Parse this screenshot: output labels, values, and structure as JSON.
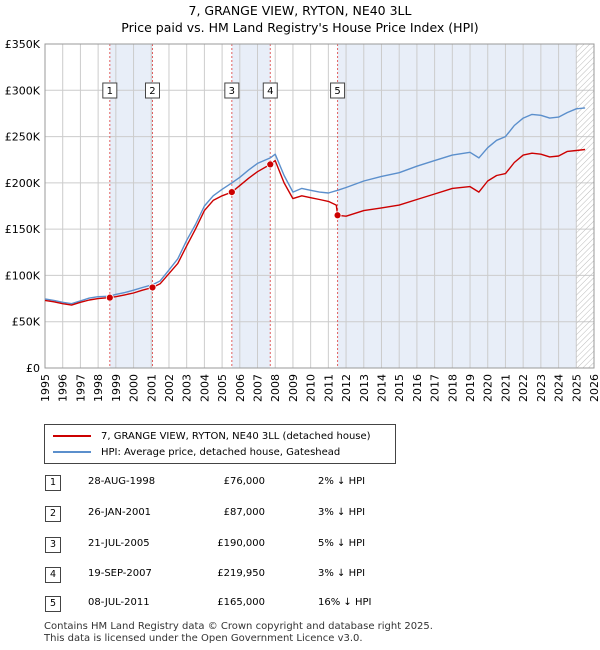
{
  "title": "7, GRANGE VIEW, RYTON, NE40 3LL",
  "subtitle": "Price paid vs. HM Land Registry's House Price Index (HPI)",
  "colors": {
    "property": "#cc0000",
    "hpi": "#5b8fcc",
    "band": "#e8eef8",
    "vline": "#e06060"
  },
  "chart_data": {
    "type": "line",
    "xlim": [
      1995,
      2026
    ],
    "ylim": [
      0,
      350000
    ],
    "y_ticks": [
      {
        "value": 0,
        "label": "£0"
      },
      {
        "value": 50000,
        "label": "£50K"
      },
      {
        "value": 100000,
        "label": "£100K"
      },
      {
        "value": 150000,
        "label": "£150K"
      },
      {
        "value": 200000,
        "label": "£200K"
      },
      {
        "value": 250000,
        "label": "£250K"
      },
      {
        "value": 300000,
        "label": "£300K"
      },
      {
        "value": 350000,
        "label": "£350K"
      }
    ],
    "x_ticks": [
      "1995",
      "1996",
      "1997",
      "1998",
      "1999",
      "2000",
      "2001",
      "2002",
      "2003",
      "2004",
      "2005",
      "2006",
      "2007",
      "2008",
      "2009",
      "2010",
      "2011",
      "2012",
      "2013",
      "2014",
      "2015",
      "2016",
      "2017",
      "2018",
      "2019",
      "2020",
      "2021",
      "2022",
      "2023",
      "2024",
      "2025",
      "2026"
    ],
    "shaded_ranges": [
      [
        1998.66,
        2001.07
      ],
      [
        2005.55,
        2007.72
      ],
      [
        2011.52,
        2025.0
      ]
    ],
    "projection_start": 2025.0,
    "series": [
      {
        "name": "7, GRANGE VIEW, RYTON, NE40 3LL (detached house)",
        "x": [
          1995.0,
          1995.5,
          1996.0,
          1996.5,
          1997.0,
          1997.5,
          1998.0,
          1998.66,
          1999.0,
          1999.5,
          2000.0,
          2000.5,
          2001.07,
          2001.5,
          2002.0,
          2002.5,
          2003.0,
          2003.5,
          2004.0,
          2004.5,
          2005.0,
          2005.55,
          2006.0,
          2006.5,
          2007.0,
          2007.72,
          2008.0,
          2008.5,
          2009.0,
          2009.5,
          2010.0,
          2010.5,
          2011.0,
          2011.45,
          2011.52,
          2012.0,
          2013.0,
          2014.0,
          2015.0,
          2016.0,
          2017.0,
          2018.0,
          2019.0,
          2019.5,
          2020.0,
          2020.5,
          2021.0,
          2021.5,
          2022.0,
          2022.5,
          2023.0,
          2023.5,
          2024.0,
          2024.5,
          2025.0,
          2025.5
        ],
        "values": [
          73000,
          71500,
          69500,
          68000,
          71000,
          73500,
          75000,
          76000,
          77000,
          79000,
          81000,
          84000,
          87000,
          91000,
          102000,
          113000,
          132000,
          150000,
          170000,
          181000,
          186000,
          190000,
          197000,
          205000,
          212000,
          219950,
          224000,
          200000,
          183000,
          186000,
          184000,
          182000,
          180000,
          176000,
          165000,
          164000,
          170000,
          173000,
          176000,
          182000,
          188000,
          194000,
          196000,
          190000,
          202000,
          208000,
          210000,
          222000,
          230000,
          232000,
          231000,
          228000,
          229000,
          234000,
          235000,
          236000
        ]
      },
      {
        "name": "HPI: Average price, detached house, Gateshead",
        "x": [
          1995.0,
          1995.5,
          1996.0,
          1996.5,
          1997.0,
          1997.5,
          1998.0,
          1998.66,
          1999.0,
          1999.5,
          2000.0,
          2000.5,
          2001.07,
          2001.5,
          2002.0,
          2002.5,
          2003.0,
          2003.5,
          2004.0,
          2004.5,
          2005.0,
          2005.55,
          2006.0,
          2006.5,
          2007.0,
          2007.72,
          2008.0,
          2008.5,
          2009.0,
          2009.5,
          2010.0,
          2010.5,
          2011.0,
          2011.52,
          2012.0,
          2013.0,
          2014.0,
          2015.0,
          2016.0,
          2017.0,
          2018.0,
          2019.0,
          2019.5,
          2020.0,
          2020.5,
          2021.0,
          2021.5,
          2022.0,
          2022.5,
          2023.0,
          2023.5,
          2024.0,
          2024.5,
          2025.0,
          2025.5
        ],
        "values": [
          74500,
          73000,
          71000,
          69500,
          72500,
          75500,
          77000,
          77600,
          79500,
          81500,
          84000,
          87000,
          90000,
          94000,
          106000,
          118000,
          138000,
          155000,
          175000,
          186000,
          193000,
          200000,
          206000,
          214000,
          221000,
          227000,
          231000,
          208000,
          190000,
          194000,
          192000,
          190000,
          189000,
          192000,
          195000,
          202000,
          207000,
          211000,
          218000,
          224000,
          230000,
          233000,
          227000,
          238000,
          246000,
          250000,
          262000,
          270000,
          274000,
          273000,
          270000,
          271000,
          276000,
          280000,
          281000
        ]
      }
    ],
    "sales": [
      {
        "label": "1",
        "date": "28-AUG-1998",
        "year": 1998.66,
        "price": 76000
      },
      {
        "label": "2",
        "date": "26-JAN-2001",
        "year": 2001.07,
        "price": 87000
      },
      {
        "label": "3",
        "date": "21-JUL-2005",
        "year": 2005.55,
        "price": 190000
      },
      {
        "label": "4",
        "date": "19-SEP-2007",
        "year": 2007.72,
        "price": 219950
      },
      {
        "label": "5",
        "date": "08-JUL-2011",
        "year": 2011.52,
        "price": 165000
      }
    ]
  },
  "legend": {
    "property": "7, GRANGE VIEW, RYTON, NE40 3LL (detached house)",
    "hpi": "HPI: Average price, detached house, Gateshead"
  },
  "transactions": [
    {
      "num": "1",
      "date": "28-AUG-1998",
      "price": "£76,000",
      "hpi": "2% ↓ HPI"
    },
    {
      "num": "2",
      "date": "26-JAN-2001",
      "price": "£87,000",
      "hpi": "3% ↓ HPI"
    },
    {
      "num": "3",
      "date": "21-JUL-2005",
      "price": "£190,000",
      "hpi": "5% ↓ HPI"
    },
    {
      "num": "4",
      "date": "19-SEP-2007",
      "price": "£219,950",
      "hpi": "3% ↓ HPI"
    },
    {
      "num": "5",
      "date": "08-JUL-2011",
      "price": "£165,000",
      "hpi": "16% ↓ HPI"
    }
  ],
  "footer": {
    "line1": "Contains HM Land Registry data © Crown copyright and database right 2025.",
    "line2": "This data is licensed under the Open Government Licence v3.0."
  }
}
